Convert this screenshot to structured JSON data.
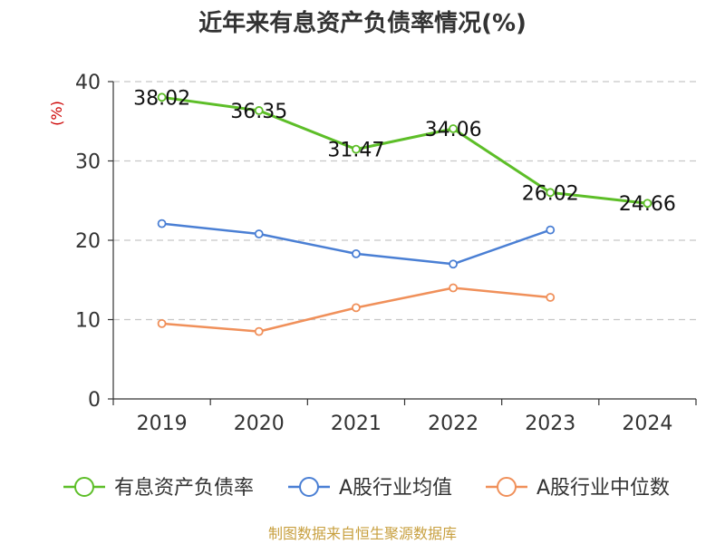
{
  "chart_data": {
    "type": "line",
    "title": "近年来有息资产负债率情况(%)",
    "ylabel": "(%)",
    "categories": [
      "2019",
      "2020",
      "2021",
      "2022",
      "2023",
      "2024"
    ],
    "ylim": [
      0,
      40
    ],
    "yticks": [
      0,
      10,
      20,
      30,
      40
    ],
    "grid": true,
    "legend_position": "bottom",
    "series": [
      {
        "name": "有息资产负债率",
        "color": "#5dbe28",
        "values": [
          38.02,
          36.35,
          31.47,
          34.06,
          26.02,
          24.66
        ],
        "labels": [
          "38.02",
          "36.35",
          "31.47",
          "34.06",
          "26.02",
          "24.66"
        ]
      },
      {
        "name": "A股行业均值",
        "color": "#4a7fd4",
        "values": [
          22.1,
          20.8,
          18.3,
          17.0,
          21.3,
          null
        ]
      },
      {
        "name": "A股行业中位数",
        "color": "#f0905a",
        "values": [
          9.5,
          8.5,
          11.5,
          14.0,
          12.8,
          null
        ]
      }
    ]
  },
  "source": "制图数据来自恒生聚源数据库"
}
